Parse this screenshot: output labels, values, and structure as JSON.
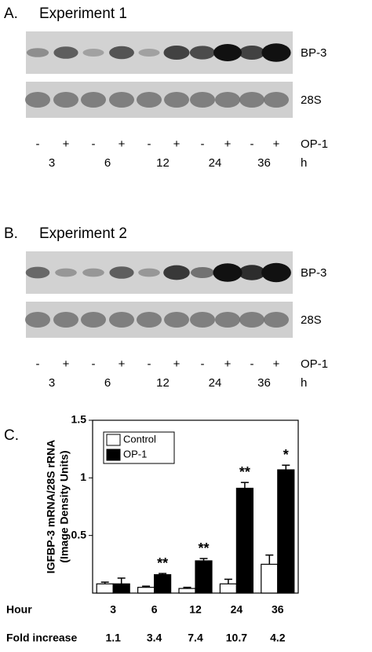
{
  "panels": [
    {
      "letter": "A.",
      "title": "Experiment 1",
      "bands": [
        "BP-3",
        "28S"
      ],
      "signs": [
        "-",
        "+",
        "-",
        "+",
        "-",
        "+",
        "-",
        "+",
        "-",
        "+"
      ],
      "treatment": "OP-1",
      "hours": [
        "3",
        "6",
        "12",
        "24",
        "36"
      ],
      "unit": "h"
    },
    {
      "letter": "B.",
      "title": "Experiment 2",
      "bands": [
        "BP-3",
        "28S"
      ],
      "signs": [
        "-",
        "+",
        "-",
        "+",
        "-",
        "+",
        "-",
        "+",
        "-",
        "+"
      ],
      "treatment": "OP-1",
      "hours": [
        "3",
        "6",
        "12",
        "24",
        "36"
      ],
      "unit": "h"
    }
  ],
  "chart_data": {
    "type": "bar",
    "letter": "C.",
    "y_label": [
      "IGFBP-3 mRNA/28S rRNA",
      "(Image Density Units)"
    ],
    "x_label": "Hour",
    "categories": [
      "3",
      "6",
      "12",
      "24",
      "36"
    ],
    "series": [
      {
        "name": "Control",
        "color": "#ffffff",
        "values": [
          0.08,
          0.05,
          0.04,
          0.08,
          0.25
        ],
        "errors": [
          0.015,
          0.01,
          0.01,
          0.04,
          0.08
        ]
      },
      {
        "name": "OP-1",
        "color": "#000000",
        "values": [
          0.08,
          0.16,
          0.28,
          0.91,
          1.07
        ],
        "errors": [
          0.05,
          0.01,
          0.02,
          0.05,
          0.04
        ]
      }
    ],
    "significance": [
      null,
      "**",
      "**",
      "**",
      "*"
    ],
    "ylim": [
      0,
      1.5
    ],
    "yticks": [
      0.5,
      1,
      1.5
    ],
    "legend": "upper left",
    "fold_label": "Fold increase",
    "fold_increase": [
      1.1,
      3.4,
      7.4,
      10.7,
      4.2
    ]
  }
}
